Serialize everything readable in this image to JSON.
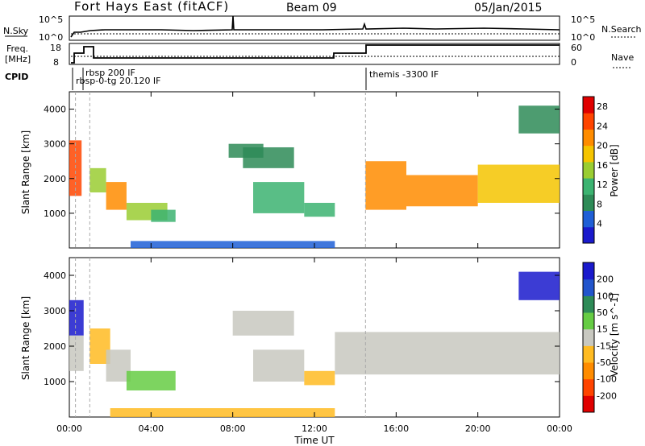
{
  "header": {
    "title": "Fort Hays East (fitACF)",
    "beam": "Beam 09",
    "date": "05/Jan/2015"
  },
  "top_strip": {
    "left_label": "N.Sky",
    "right_label": "N.Search",
    "left_ticks": [
      "10^5",
      "10^0"
    ],
    "right_ticks": [
      "10^5",
      "10^0"
    ]
  },
  "freq_strip": {
    "left_label_line1": "Freq.",
    "left_label_line2": "[MHz]",
    "right_label": "Nave",
    "left_ticks": [
      "18",
      "8"
    ],
    "right_ticks": [
      "60",
      "0"
    ]
  },
  "cpid": {
    "label": "CPID",
    "entries": [
      {
        "text": "rbsp 200 IF",
        "start": "00:15"
      },
      {
        "text": "rbsp-0-tg 20.120 IF",
        "start": "00:20"
      },
      {
        "text": "themis -3300 IF",
        "start": "14:30"
      }
    ]
  },
  "colors": {
    "power_scale": [
      "#1a1acc",
      "#1f5fd6",
      "#2e8b57",
      "#3cb371",
      "#9acd32",
      "#f5c400",
      "#ff8c00",
      "#ff4500",
      "#e00000"
    ],
    "velocity_scale": [
      "#1a1acc",
      "#2255cc",
      "#2e8b57",
      "#66cc44",
      "#c8c8c0",
      "#ffbb22",
      "#ff8c00",
      "#ff4400",
      "#e00000"
    ]
  },
  "chart_data": [
    {
      "type": "heatmap",
      "name": "power",
      "title": "",
      "xlabel": "Time UT",
      "ylabel": "Slant Range [km]",
      "x_ticks": [
        "00:00",
        "04:00",
        "08:00",
        "12:00",
        "16:00",
        "20:00",
        "00:00"
      ],
      "y_ticks": [
        1000,
        2000,
        3000,
        4000
      ],
      "ylim": [
        0,
        4500
      ],
      "colorbar": {
        "label": "Power [dB]",
        "ticks": [
          4,
          8,
          12,
          16,
          20,
          24,
          28
        ],
        "range": [
          0,
          30
        ]
      },
      "patches": [
        {
          "t0": 0.0,
          "t1": 0.6,
          "r0": 1500,
          "r1": 3100,
          "value": 24
        },
        {
          "t0": 1.0,
          "t1": 1.8,
          "r0": 1600,
          "r1": 2300,
          "value": 16
        },
        {
          "t0": 1.8,
          "t1": 2.8,
          "r0": 1100,
          "r1": 1900,
          "value": 20
        },
        {
          "t0": 2.8,
          "t1": 4.8,
          "r0": 800,
          "r1": 1300,
          "value": 14
        },
        {
          "t0": 4.0,
          "t1": 5.2,
          "r0": 750,
          "r1": 1100,
          "value": 10
        },
        {
          "t0": 7.8,
          "t1": 9.5,
          "r0": 2600,
          "r1": 3000,
          "value": 8
        },
        {
          "t0": 8.5,
          "t1": 11.0,
          "r0": 2300,
          "r1": 2900,
          "value": 8
        },
        {
          "t0": 9.0,
          "t1": 11.5,
          "r0": 1000,
          "r1": 1900,
          "value": 10
        },
        {
          "t0": 11.5,
          "t1": 13.0,
          "r0": 900,
          "r1": 1300,
          "value": 12
        },
        {
          "t0": 14.5,
          "t1": 16.5,
          "r0": 1100,
          "r1": 2500,
          "value": 22
        },
        {
          "t0": 16.5,
          "t1": 20.0,
          "r0": 1200,
          "r1": 2100,
          "value": 20
        },
        {
          "t0": 20.0,
          "t1": 24.0,
          "r0": 1300,
          "r1": 2400,
          "value": 18
        },
        {
          "t0": 22.0,
          "t1": 24.0,
          "r0": 3300,
          "r1": 4100,
          "value": 8
        },
        {
          "t0": 3.0,
          "t1": 13.0,
          "r0": 0,
          "r1": 200,
          "value": 6
        }
      ]
    },
    {
      "type": "heatmap",
      "name": "velocity",
      "title": "",
      "xlabel": "Time UT",
      "ylabel": "Slant Range [km]",
      "x_ticks": [
        "00:00",
        "04:00",
        "08:00",
        "12:00",
        "16:00",
        "20:00",
        "00:00"
      ],
      "y_ticks": [
        1000,
        2000,
        3000,
        4000
      ],
      "ylim": [
        0,
        4500
      ],
      "colorbar": {
        "label": "Velocity [m s^-1]",
        "ticks": [
          200,
          100,
          50,
          15,
          -15,
          -50,
          -100,
          -200
        ],
        "range": [
          -250,
          250
        ]
      },
      "patches": [
        {
          "t0": 0.0,
          "t1": 0.7,
          "r0": 2300,
          "r1": 3300,
          "value": 200
        },
        {
          "t0": 0.0,
          "t1": 0.7,
          "r0": 1300,
          "r1": 2300,
          "value": 0
        },
        {
          "t0": 1.0,
          "t1": 2.0,
          "r0": 1500,
          "r1": 2500,
          "value": -60
        },
        {
          "t0": 1.8,
          "t1": 3.0,
          "r0": 1000,
          "r1": 1900,
          "value": 0
        },
        {
          "t0": 2.8,
          "t1": 5.2,
          "r0": 750,
          "r1": 1300,
          "value": 40
        },
        {
          "t0": 8.0,
          "t1": 11.0,
          "r0": 2300,
          "r1": 3000,
          "value": 0
        },
        {
          "t0": 9.0,
          "t1": 11.5,
          "r0": 1000,
          "r1": 1900,
          "value": 0
        },
        {
          "t0": 11.5,
          "t1": 13.0,
          "r0": 900,
          "r1": 1300,
          "value": -60
        },
        {
          "t0": 13.0,
          "t1": 24.0,
          "r0": 1200,
          "r1": 2400,
          "value": 0
        },
        {
          "t0": 22.0,
          "t1": 24.0,
          "r0": 3300,
          "r1": 4100,
          "value": 200
        },
        {
          "t0": 2.0,
          "t1": 13.0,
          "r0": 0,
          "r1": 250,
          "value": -60
        }
      ]
    }
  ]
}
